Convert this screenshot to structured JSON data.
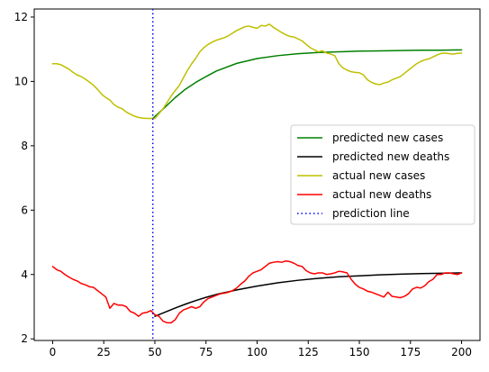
{
  "chart_data": {
    "type": "line",
    "title": "",
    "xlabel": "",
    "ylabel": "",
    "xlim": [
      -9,
      209
    ],
    "ylim": [
      1.95,
      12.25
    ],
    "xticks": [
      0,
      25,
      50,
      75,
      100,
      125,
      150,
      175,
      200
    ],
    "yticks": [
      2,
      4,
      6,
      8,
      10,
      12
    ],
    "xtick_labels": [
      "0",
      "25",
      "50",
      "75",
      "100",
      "125",
      "150",
      "175",
      "200"
    ],
    "ytick_labels": [
      "2",
      "4",
      "6",
      "8",
      "10",
      "12"
    ],
    "grid": false,
    "legend": {
      "placement": "center-right"
    },
    "series": [
      {
        "name": "predicted new cases",
        "color": "#008000",
        "style": "solid",
        "x": [
          49,
          55,
          60,
          65,
          70,
          75,
          80,
          90,
          100,
          110,
          120,
          130,
          140,
          150,
          160,
          170,
          180,
          190,
          200
        ],
        "y": [
          8.85,
          9.2,
          9.5,
          9.76,
          9.97,
          10.15,
          10.32,
          10.56,
          10.71,
          10.8,
          10.86,
          10.9,
          10.92,
          10.94,
          10.95,
          10.96,
          10.97,
          10.97,
          10.98
        ]
      },
      {
        "name": "predicted new deaths",
        "color": "#000000",
        "style": "solid",
        "x": [
          50,
          55,
          60,
          65,
          70,
          75,
          80,
          90,
          100,
          110,
          120,
          130,
          140,
          150,
          160,
          170,
          180,
          190,
          200
        ],
        "y": [
          2.7,
          2.83,
          2.96,
          3.08,
          3.19,
          3.29,
          3.38,
          3.52,
          3.64,
          3.74,
          3.82,
          3.88,
          3.93,
          3.96,
          3.99,
          4.01,
          4.03,
          4.04,
          4.05
        ]
      },
      {
        "name": "actual new cases",
        "color": "#BFBF00",
        "style": "solid",
        "x": [
          0,
          2,
          4,
          6,
          8,
          10,
          12,
          14,
          16,
          18,
          20,
          22,
          24,
          26,
          28,
          30,
          32,
          34,
          36,
          38,
          40,
          42,
          44,
          46,
          48,
          50,
          52,
          54,
          56,
          58,
          60,
          62,
          64,
          66,
          68,
          70,
          72,
          74,
          76,
          78,
          80,
          82,
          84,
          86,
          88,
          90,
          92,
          94,
          96,
          98,
          100,
          102,
          104,
          106,
          108,
          110,
          112,
          114,
          116,
          118,
          120,
          122,
          124,
          126,
          128,
          130,
          132,
          134,
          136,
          138,
          140,
          142,
          144,
          146,
          148,
          150,
          152,
          154,
          156,
          158,
          160,
          162,
          164,
          166,
          168,
          170,
          172,
          174,
          176,
          178,
          180,
          182,
          184,
          186,
          188,
          190,
          192,
          194,
          196,
          198,
          200
        ],
        "y": [
          10.55,
          10.55,
          10.52,
          10.45,
          10.38,
          10.28,
          10.2,
          10.15,
          10.07,
          9.98,
          9.88,
          9.75,
          9.6,
          9.5,
          9.42,
          9.28,
          9.2,
          9.15,
          9.05,
          8.98,
          8.92,
          8.88,
          8.86,
          8.85,
          8.85,
          8.85,
          9.0,
          9.15,
          9.35,
          9.55,
          9.72,
          9.88,
          10.12,
          10.35,
          10.55,
          10.72,
          10.92,
          11.05,
          11.15,
          11.22,
          11.28,
          11.32,
          11.36,
          11.42,
          11.5,
          11.58,
          11.64,
          11.7,
          11.72,
          11.68,
          11.65,
          11.74,
          11.72,
          11.78,
          11.68,
          11.6,
          11.52,
          11.45,
          11.4,
          11.38,
          11.32,
          11.26,
          11.15,
          11.05,
          10.98,
          10.92,
          10.95,
          10.88,
          10.85,
          10.8,
          10.55,
          10.42,
          10.35,
          10.3,
          10.28,
          10.27,
          10.2,
          10.05,
          9.97,
          9.92,
          9.9,
          9.95,
          9.98,
          10.05,
          10.1,
          10.15,
          10.25,
          10.35,
          10.45,
          10.55,
          10.62,
          10.67,
          10.7,
          10.76,
          10.82,
          10.87,
          10.88,
          10.86,
          10.85,
          10.87,
          10.88
        ]
      },
      {
        "name": "actual new deaths",
        "color": "#FF0000",
        "style": "solid",
        "x": [
          0,
          2,
          4,
          6,
          8,
          10,
          12,
          14,
          16,
          18,
          20,
          22,
          24,
          26,
          28,
          30,
          32,
          34,
          36,
          38,
          40,
          42,
          44,
          46,
          48,
          50,
          52,
          54,
          56,
          58,
          60,
          62,
          64,
          66,
          68,
          70,
          72,
          74,
          76,
          78,
          80,
          82,
          84,
          86,
          88,
          90,
          92,
          94,
          96,
          98,
          100,
          102,
          104,
          106,
          108,
          110,
          112,
          114,
          116,
          118,
          120,
          122,
          124,
          126,
          128,
          130,
          132,
          134,
          136,
          138,
          140,
          142,
          144,
          146,
          148,
          150,
          152,
          154,
          156,
          158,
          160,
          162,
          164,
          166,
          168,
          170,
          172,
          174,
          176,
          178,
          180,
          182,
          184,
          186,
          188,
          190,
          192,
          194,
          196,
          198,
          200
        ],
        "y": [
          4.25,
          4.15,
          4.1,
          4.0,
          3.92,
          3.85,
          3.8,
          3.72,
          3.68,
          3.62,
          3.6,
          3.5,
          3.4,
          3.3,
          2.95,
          3.1,
          3.05,
          3.05,
          3.0,
          2.85,
          2.8,
          2.7,
          2.8,
          2.82,
          2.88,
          2.75,
          2.7,
          2.55,
          2.5,
          2.5,
          2.6,
          2.8,
          2.9,
          2.95,
          3.0,
          2.95,
          3.0,
          3.15,
          3.25,
          3.3,
          3.35,
          3.4,
          3.42,
          3.45,
          3.5,
          3.58,
          3.7,
          3.8,
          3.95,
          4.05,
          4.1,
          4.15,
          4.25,
          4.35,
          4.38,
          4.4,
          4.38,
          4.42,
          4.4,
          4.35,
          4.28,
          4.25,
          4.12,
          4.05,
          4.02,
          4.05,
          4.05,
          4.0,
          4.02,
          4.05,
          4.1,
          4.08,
          4.05,
          3.85,
          3.7,
          3.6,
          3.55,
          3.48,
          3.45,
          3.4,
          3.35,
          3.3,
          3.45,
          3.32,
          3.3,
          3.28,
          3.32,
          3.4,
          3.55,
          3.6,
          3.58,
          3.65,
          3.78,
          3.85,
          4.0,
          4.0,
          4.05,
          4.05,
          4.02,
          4.0,
          4.05
        ]
      }
    ],
    "reference_lines": [
      {
        "name": "prediction line",
        "orientation": "vertical",
        "x": 49,
        "color": "#0000FF",
        "style": "dotted"
      }
    ]
  }
}
